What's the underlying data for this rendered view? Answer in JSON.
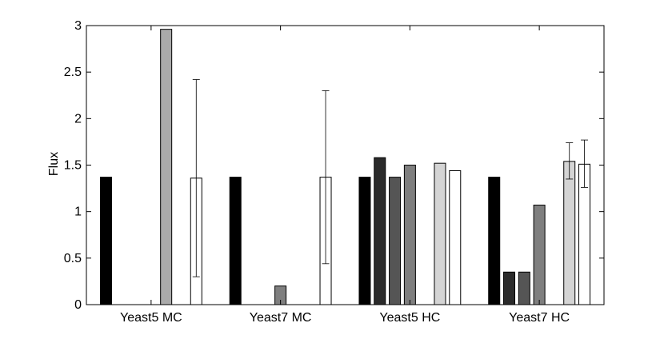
{
  "chart_data": {
    "type": "bar",
    "title": "",
    "xlabel": "",
    "ylabel": "Flux",
    "ylim": [
      0,
      3
    ],
    "yticks": [
      "0",
      "0.5",
      "1",
      "1.5",
      "2",
      "2.5",
      "3"
    ],
    "categories": [
      "Yeast5 MC",
      "Yeast7 MC",
      "Yeast5 HC",
      "Yeast7 HC"
    ],
    "grid": false,
    "legend": "none",
    "series": [
      {
        "color": "#000000",
        "values": [
          1.37,
          1.37,
          1.37,
          1.37
        ],
        "error": [
          null,
          null,
          null,
          null
        ]
      },
      {
        "color": "#2a2a2a",
        "values": [
          0,
          0,
          1.58,
          0.35
        ],
        "error": [
          null,
          null,
          null,
          null
        ]
      },
      {
        "color": "#555555",
        "values": [
          0,
          0,
          1.37,
          0.35
        ],
        "error": [
          null,
          null,
          null,
          null
        ]
      },
      {
        "color": "#7f7f7f",
        "values": [
          0,
          0.2,
          1.5,
          1.07
        ],
        "error": [
          null,
          null,
          null,
          null
        ]
      },
      {
        "color": "#aaaaaa",
        "values": [
          2.96,
          0,
          0,
          0
        ],
        "error": [
          null,
          null,
          null,
          null
        ]
      },
      {
        "color": "#d4d4d4",
        "values": [
          0,
          0,
          1.52,
          1.54
        ],
        "error": [
          null,
          null,
          null,
          [
            1.35,
            1.74
          ]
        ]
      },
      {
        "color": "#ffffff",
        "values": [
          1.36,
          1.37,
          1.44,
          1.51
        ],
        "error": [
          [
            0.3,
            2.42
          ],
          [
            0.44,
            2.3
          ],
          null,
          [
            1.26,
            1.77
          ]
        ]
      }
    ]
  }
}
